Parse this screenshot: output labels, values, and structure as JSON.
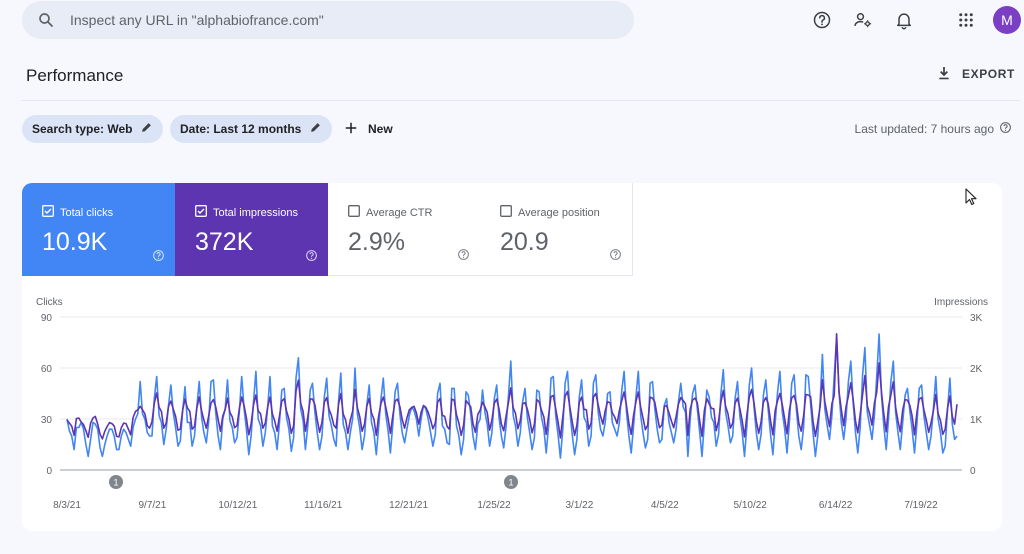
{
  "search": {
    "placeholder": "Inspect any URL in \"alphabiofrance.com\""
  },
  "topbar": {
    "avatar_letter": "M",
    "icons": [
      "help-icon",
      "manage-users-icon",
      "notifications-icon",
      "apps-grid-icon"
    ]
  },
  "header": {
    "title": "Performance",
    "export_label": "EXPORT"
  },
  "filters": {
    "search_type": "Search type: Web",
    "date": "Date: Last 12 months",
    "new_label": "New",
    "last_updated": "Last updated: 7 hours ago"
  },
  "metrics": [
    {
      "label": "Total clicks",
      "value": "10.9K",
      "checked": true,
      "color": "#4285f4"
    },
    {
      "label": "Total impressions",
      "value": "372K",
      "checked": true,
      "color": "#5e35b1"
    },
    {
      "label": "Average CTR",
      "value": "2.9%",
      "checked": false
    },
    {
      "label": "Average position",
      "value": "20.9",
      "checked": false
    }
  ],
  "chart_data": {
    "type": "line",
    "ylabel_left": "Clicks",
    "ylabel_right": "Impressions",
    "y_left_ticks": [
      "90",
      "60",
      "30",
      "0"
    ],
    "y_right_ticks": [
      "3K",
      "2K",
      "1K",
      "0"
    ],
    "ylim_left": [
      0,
      90
    ],
    "ylim_right": [
      0,
      3000
    ],
    "x_tick_labels": [
      "8/3/21",
      "9/7/21",
      "10/12/21",
      "11/16/21",
      "12/21/21",
      "1/25/22",
      "3/1/22",
      "4/5/22",
      "5/10/22",
      "6/14/22",
      "7/19/22"
    ],
    "annotations": [
      "1",
      "1"
    ],
    "grid": "horizontal",
    "series": [
      {
        "name": "Clicks",
        "axis": "left",
        "color": "#4285f4"
      },
      {
        "name": "Impressions",
        "axis": "right",
        "color": "#5e35b1"
      }
    ],
    "daily_values": {
      "clicks": [
        30,
        23,
        20,
        12,
        25,
        25,
        28,
        24,
        15,
        8,
        18,
        28,
        27,
        24,
        13,
        8,
        15,
        20,
        24,
        24,
        20,
        12,
        12,
        20,
        24,
        22,
        18,
        14,
        25,
        30,
        33,
        52,
        33,
        30,
        22,
        20,
        20,
        42,
        55,
        32,
        28,
        15,
        24,
        38,
        50,
        34,
        25,
        14,
        17,
        35,
        49,
        28,
        28,
        14,
        20,
        37,
        52,
        31,
        22,
        16,
        28,
        52,
        53,
        34,
        20,
        12,
        30,
        36,
        53,
        29,
        25,
        16,
        19,
        34,
        55,
        36,
        24,
        9,
        20,
        40,
        58,
        30,
        26,
        14,
        22,
        37,
        55,
        26,
        22,
        12,
        28,
        47,
        48,
        31,
        24,
        11,
        19,
        54,
        66,
        36,
        29,
        12,
        26,
        47,
        51,
        34,
        22,
        12,
        20,
        43,
        54,
        32,
        26,
        18,
        14,
        40,
        57,
        27,
        22,
        12,
        22,
        30,
        60,
        33,
        25,
        12,
        20,
        38,
        50,
        28,
        22,
        9,
        25,
        42,
        54,
        33,
        23,
        10,
        27,
        46,
        51,
        33,
        22,
        16,
        24,
        32,
        37,
        35,
        30,
        20,
        30,
        38,
        36,
        30,
        22,
        14,
        21,
        45,
        51,
        26,
        24,
        16,
        15,
        48,
        48,
        26,
        20,
        9,
        18,
        46,
        44,
        33,
        20,
        12,
        27,
        30,
        47,
        34,
        27,
        14,
        22,
        42,
        50,
        31,
        20,
        13,
        26,
        44,
        64,
        32,
        26,
        14,
        22,
        40,
        48,
        31,
        22,
        12,
        19,
        47,
        46,
        31,
        24,
        10,
        26,
        54,
        55,
        32,
        21,
        7,
        24,
        51,
        58,
        35,
        21,
        9,
        18,
        43,
        53,
        31,
        28,
        14,
        20,
        51,
        56,
        34,
        24,
        20,
        28,
        45,
        46,
        28,
        24,
        20,
        28,
        47,
        58,
        34,
        20,
        10,
        26,
        43,
        58,
        32,
        22,
        13,
        18,
        51,
        52,
        36,
        24,
        16,
        18,
        38,
        42,
        28,
        22,
        16,
        24,
        40,
        51,
        37,
        34,
        8,
        30,
        45,
        50,
        36,
        22,
        8,
        28,
        47,
        43,
        31,
        28,
        14,
        21,
        45,
        59,
        34,
        26,
        16,
        20,
        42,
        52,
        32,
        22,
        8,
        26,
        50,
        60,
        37,
        22,
        12,
        21,
        44,
        53,
        36,
        21,
        9,
        28,
        46,
        58,
        34,
        24,
        10,
        28,
        51,
        56,
        35,
        20,
        12,
        25,
        56,
        55,
        39,
        22,
        8,
        20,
        40,
        68,
        36,
        26,
        18,
        32,
        55,
        78,
        46,
        28,
        18,
        30,
        52,
        64,
        40,
        22,
        10,
        25,
        56,
        72,
        34,
        26,
        18,
        32,
        55,
        80,
        44,
        26,
        12,
        30,
        52,
        64,
        34,
        22,
        12,
        28,
        44,
        48,
        35,
        24,
        10,
        27,
        48,
        50,
        32,
        22,
        12,
        20,
        36,
        55,
        30,
        22,
        10,
        14,
        36,
        54,
        27,
        18,
        20
      ],
      "impressions": [
        980,
        920,
        860,
        680,
        1010,
        1020,
        940,
        890,
        770,
        640,
        920,
        1020,
        1050,
        900,
        700,
        610,
        760,
        850,
        930,
        910,
        860,
        660,
        650,
        830,
        920,
        910,
        800,
        690,
        1030,
        1150,
        1180,
        1250,
        1180,
        1100,
        870,
        820,
        950,
        1310,
        1510,
        1230,
        1150,
        820,
        920,
        1250,
        1350,
        1200,
        1050,
        780,
        800,
        1180,
        1390,
        1220,
        1150,
        800,
        850,
        1210,
        1430,
        1160,
        980,
        820,
        1050,
        1310,
        1380,
        1240,
        1000,
        760,
        1060,
        1190,
        1410,
        1130,
        1040,
        830,
        870,
        1200,
        1430,
        1260,
        1020,
        690,
        900,
        1280,
        1470,
        1160,
        1100,
        820,
        920,
        1240,
        1430,
        1100,
        960,
        760,
        1060,
        1350,
        1400,
        1160,
        1000,
        720,
        870,
        1550,
        1760,
        1310,
        1150,
        760,
        1040,
        1390,
        1390,
        1280,
        990,
        740,
        940,
        1330,
        1420,
        1190,
        1070,
        880,
        820,
        1280,
        1500,
        1100,
        980,
        720,
        980,
        1150,
        1580,
        1220,
        1050,
        760,
        900,
        1250,
        1400,
        1120,
        1000,
        680,
        1050,
        1310,
        1430,
        1240,
        1010,
        720,
        1060,
        1350,
        1390,
        1240,
        990,
        820,
        1020,
        1180,
        1220,
        1250,
        1120,
        900,
        1130,
        1260,
        1230,
        1130,
        980,
        810,
        920,
        1330,
        1400,
        1070,
        1050,
        850,
        800,
        1390,
        1370,
        1080,
        920,
        680,
        880,
        1360,
        1300,
        1240,
        910,
        740,
        1090,
        1170,
        1330,
        1240,
        1130,
        780,
        980,
        1310,
        1390,
        1200,
        900,
        770,
        1060,
        1330,
        1610,
        1220,
        1110,
        810,
        970,
        1300,
        1320,
        1200,
        990,
        730,
        900,
        1380,
        1340,
        1170,
        1040,
        700,
        1070,
        1440,
        1460,
        1200,
        950,
        630,
        1040,
        1450,
        1540,
        1240,
        950,
        680,
        880,
        1330,
        1430,
        1190,
        1180,
        800,
        920,
        1430,
        1500,
        1280,
        1060,
        900,
        1160,
        1340,
        1320,
        1120,
        1040,
        910,
        1170,
        1360,
        1530,
        1260,
        920,
        700,
        1080,
        1340,
        1530,
        1230,
        1020,
        790,
        880,
        1430,
        1410,
        1330,
        1060,
        830,
        880,
        1250,
        1260,
        1120,
        960,
        830,
        1050,
        1290,
        1420,
        1360,
        1300,
        680,
        1190,
        1370,
        1410,
        1320,
        960,
        660,
        1170,
        1400,
        1300,
        1210,
        1200,
        770,
        960,
        1330,
        1560,
        1250,
        1100,
        820,
        920,
        1310,
        1410,
        1210,
        960,
        650,
        1080,
        1430,
        1580,
        1320,
        960,
        720,
        950,
        1330,
        1420,
        1310,
        970,
        690,
        1170,
        1360,
        1500,
        1280,
        1000,
        710,
        1170,
        1410,
        1460,
        1290,
        920,
        760,
        1060,
        1480,
        1470,
        1440,
        960,
        660,
        930,
        1240,
        1770,
        1340,
        1090,
        850,
        1300,
        1460,
        2670,
        1540,
        1190,
        870,
        1240,
        1450,
        1710,
        1390,
        960,
        730,
        1090,
        1480,
        1850,
        1260,
        1100,
        880,
        1310,
        1520,
        2100,
        1520,
        1100,
        750,
        1240,
        1470,
        1730,
        1230,
        960,
        750,
        1180,
        1380,
        1370,
        1270,
        1060,
        690,
        1130,
        1390,
        1420,
        1180,
        980,
        740,
        920,
        1160,
        1480,
        1110,
        970,
        700,
        800,
        1220,
        1450,
        1050,
        900,
        1290
      ]
    }
  }
}
